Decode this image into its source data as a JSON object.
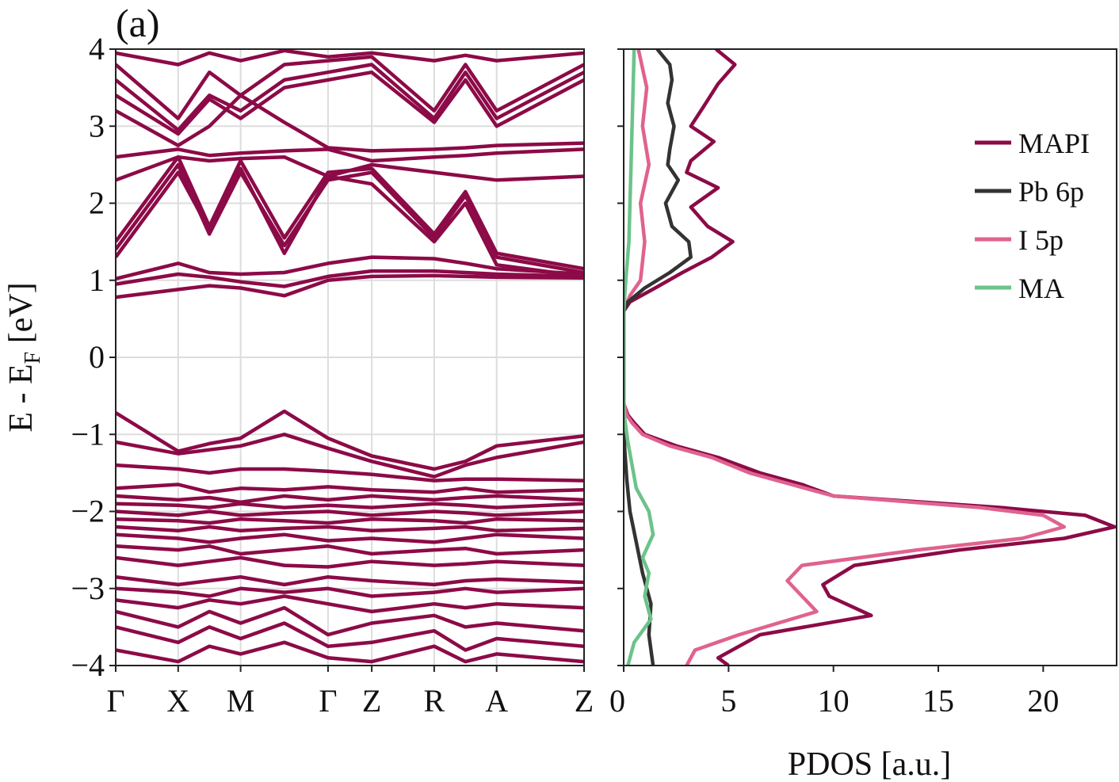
{
  "panel_label": "(a)",
  "chart_data": [
    {
      "type": "line",
      "subtype": "band-structure",
      "ylabel_main": "E - E",
      "ylabel_sub": "F",
      "ylabel_suffix": " [eV]",
      "ylim": [
        -4,
        4
      ],
      "yticks": [
        4,
        3,
        2,
        1,
        0,
        -1,
        -2,
        -3,
        -4
      ],
      "ytick_labels": [
        "4",
        "3",
        "2",
        "1",
        "0",
        "−1",
        "−2",
        "−3",
        "−4"
      ],
      "kpoints": [
        {
          "label": "Γ",
          "x": 0
        },
        {
          "label": "X",
          "x": 0.5
        },
        {
          "label": "M",
          "x": 1.0
        },
        {
          "label": "Γ",
          "x": 1.7
        },
        {
          "label": "Z",
          "x": 2.05
        },
        {
          "label": "R",
          "x": 2.55
        },
        {
          "label": "A",
          "x": 3.05
        },
        {
          "label": "Z",
          "x": 3.75
        }
      ],
      "band_color": "#8c0a47",
      "grid": true,
      "bands": [
        [
          0.78,
          0.88,
          0.93,
          0.9,
          0.8,
          1.0,
          1.05,
          1.06,
          1.05,
          1.04,
          1.03
        ],
        [
          0.95,
          1.08,
          1.04,
          0.98,
          0.92,
          1.05,
          1.12,
          1.12,
          1.1,
          1.08,
          1.05
        ],
        [
          1.02,
          1.22,
          1.1,
          1.08,
          1.1,
          1.22,
          1.3,
          1.28,
          1.22,
          1.15,
          1.08
        ],
        [
          1.3,
          2.4,
          1.65,
          2.45,
          1.35,
          2.35,
          2.25,
          1.5,
          2.0,
          1.2,
          1.05
        ],
        [
          1.4,
          2.5,
          1.6,
          2.4,
          1.45,
          2.3,
          2.4,
          1.55,
          2.1,
          1.3,
          1.1
        ],
        [
          1.5,
          2.6,
          1.7,
          2.55,
          1.55,
          2.4,
          2.45,
          1.6,
          2.15,
          1.35,
          1.15
        ],
        [
          2.3,
          2.6,
          2.55,
          2.58,
          2.6,
          2.35,
          2.5,
          2.4,
          2.35,
          2.3,
          2.35
        ],
        [
          2.6,
          2.7,
          2.62,
          2.65,
          2.68,
          2.7,
          2.55,
          2.6,
          2.62,
          2.65,
          2.7
        ],
        [
          3.2,
          2.75,
          3.0,
          3.4,
          3.05,
          2.72,
          2.68,
          2.7,
          2.72,
          2.75,
          2.78
        ],
        [
          3.4,
          2.9,
          3.35,
          3.1,
          3.5,
          3.6,
          3.7,
          3.05,
          3.6,
          3.0,
          3.6
        ],
        [
          3.6,
          2.95,
          3.4,
          3.2,
          3.6,
          3.7,
          3.8,
          3.1,
          3.7,
          3.1,
          3.7
        ],
        [
          3.8,
          3.1,
          3.7,
          3.4,
          3.8,
          3.85,
          3.9,
          3.2,
          3.8,
          3.2,
          3.8
        ],
        [
          3.95,
          3.8,
          3.95,
          3.85,
          3.98,
          3.9,
          3.95,
          3.85,
          3.92,
          3.85,
          3.95
        ],
        [
          -0.72,
          -1.22,
          -1.12,
          -1.05,
          -0.7,
          -1.05,
          -1.28,
          -1.45,
          -1.35,
          -1.15,
          -1.02
        ],
        [
          -1.1,
          -1.25,
          -1.2,
          -1.15,
          -1.0,
          -1.18,
          -1.35,
          -1.55,
          -1.4,
          -1.3,
          -1.1
        ],
        [
          -1.4,
          -1.45,
          -1.5,
          -1.45,
          -1.45,
          -1.48,
          -1.52,
          -1.6,
          -1.58,
          -1.58,
          -1.6
        ],
        [
          -1.7,
          -1.65,
          -1.75,
          -1.7,
          -1.72,
          -1.68,
          -1.72,
          -1.75,
          -1.7,
          -1.75,
          -1.72
        ],
        [
          -1.8,
          -1.85,
          -1.82,
          -1.88,
          -1.8,
          -1.85,
          -1.8,
          -1.85,
          -1.82,
          -1.8,
          -1.85
        ],
        [
          -1.9,
          -1.92,
          -1.95,
          -1.9,
          -1.95,
          -1.92,
          -1.95,
          -1.9,
          -1.92,
          -1.95,
          -1.9
        ],
        [
          -2.0,
          -2.05,
          -2.0,
          -2.05,
          -2.02,
          -2.0,
          -2.05,
          -2.0,
          -2.02,
          -2.05,
          -2.0
        ],
        [
          -2.1,
          -2.12,
          -2.15,
          -2.1,
          -2.12,
          -2.15,
          -2.1,
          -2.12,
          -2.15,
          -2.1,
          -2.12
        ],
        [
          -2.2,
          -2.25,
          -2.2,
          -2.25,
          -2.22,
          -2.2,
          -2.25,
          -2.22,
          -2.2,
          -2.25,
          -2.22
        ],
        [
          -2.3,
          -2.35,
          -2.4,
          -2.35,
          -2.3,
          -2.38,
          -2.35,
          -2.4,
          -2.35,
          -2.3,
          -2.35
        ],
        [
          -2.45,
          -2.5,
          -2.45,
          -2.55,
          -2.5,
          -2.45,
          -2.55,
          -2.5,
          -2.48,
          -2.55,
          -2.5
        ],
        [
          -2.6,
          -2.7,
          -2.65,
          -2.6,
          -2.7,
          -2.72,
          -2.65,
          -2.7,
          -2.68,
          -2.65,
          -2.7
        ],
        [
          -2.85,
          -2.95,
          -2.9,
          -2.85,
          -2.95,
          -2.85,
          -2.9,
          -2.95,
          -2.9,
          -2.88,
          -2.92
        ],
        [
          -3.0,
          -3.05,
          -3.1,
          -3.0,
          -3.05,
          -3.0,
          -3.1,
          -3.05,
          -3.0,
          -3.05,
          -3.0
        ],
        [
          -3.15,
          -3.25,
          -3.15,
          -3.2,
          -3.1,
          -3.2,
          -3.3,
          -3.2,
          -3.25,
          -3.2,
          -3.25
        ],
        [
          -3.3,
          -3.5,
          -3.3,
          -3.45,
          -3.25,
          -3.6,
          -3.45,
          -3.35,
          -3.5,
          -3.45,
          -3.55
        ],
        [
          -3.5,
          -3.7,
          -3.5,
          -3.65,
          -3.45,
          -3.75,
          -3.7,
          -3.55,
          -3.8,
          -3.65,
          -3.75
        ],
        [
          -3.8,
          -3.95,
          -3.75,
          -3.85,
          -3.7,
          -3.9,
          -3.95,
          -3.75,
          -3.95,
          -3.85,
          -3.95
        ]
      ]
    },
    {
      "type": "line",
      "subtype": "density-of-states",
      "xlabel": "PDOS [a.u.]",
      "xlim": [
        0,
        23.5
      ],
      "xticks": [
        0,
        5,
        10,
        15,
        20
      ],
      "xtick_labels": [
        "0",
        "5",
        "10",
        "15",
        "20"
      ],
      "ylim": [
        -4,
        4
      ],
      "yticks": [
        4,
        3,
        2,
        1,
        0,
        -1,
        -2,
        -3,
        -4
      ],
      "legend_position": "upper-right",
      "series": [
        {
          "name": "MAPI",
          "color": "#8c0a47",
          "e": [
            -4.0,
            -3.9,
            -3.6,
            -3.35,
            -3.1,
            -2.95,
            -2.7,
            -2.5,
            -2.35,
            -2.2,
            -2.05,
            -1.95,
            -1.8,
            -1.65,
            -1.5,
            -1.3,
            -1.15,
            -1.0,
            -0.85,
            -0.75,
            -0.6,
            0.6,
            0.72,
            0.9,
            1.1,
            1.3,
            1.5,
            1.7,
            1.95,
            2.2,
            2.4,
            2.55,
            2.8,
            3.0,
            3.25,
            3.55,
            3.8,
            4.0
          ],
          "pdos": [
            5.0,
            4.5,
            6.5,
            11.8,
            9.8,
            9.5,
            11.0,
            16.0,
            21.0,
            23.4,
            22.0,
            18.0,
            10.0,
            8.5,
            6.5,
            4.5,
            2.5,
            1.0,
            0.5,
            0.2,
            0.0,
            0.0,
            0.3,
            1.5,
            2.8,
            4.2,
            5.2,
            4.0,
            3.2,
            4.5,
            3.0,
            3.2,
            4.3,
            3.2,
            3.8,
            4.5,
            5.3,
            4.4
          ]
        },
        {
          "name": "Pb 6p",
          "color": "#333333",
          "e": [
            -4.0,
            -3.6,
            -3.2,
            -2.8,
            -2.4,
            -2.0,
            -1.6,
            -1.2,
            -0.9,
            -0.6,
            0.6,
            0.72,
            0.9,
            1.1,
            1.3,
            1.5,
            1.7,
            2.0,
            2.3,
            2.5,
            2.7,
            3.0,
            3.3,
            3.6,
            3.8,
            4.0
          ],
          "pdos": [
            1.4,
            1.2,
            1.3,
            0.9,
            0.6,
            0.3,
            0.15,
            0.05,
            0.02,
            0.0,
            0.0,
            0.2,
            1.0,
            2.2,
            3.2,
            3.1,
            2.3,
            2.0,
            2.6,
            2.1,
            2.2,
            2.4,
            2.1,
            2.3,
            2.2,
            1.6
          ]
        },
        {
          "name": "I 5p",
          "color": "#e0628f",
          "e": [
            -4.0,
            -3.8,
            -3.6,
            -3.3,
            -3.1,
            -2.9,
            -2.7,
            -2.5,
            -2.35,
            -2.2,
            -2.05,
            -1.95,
            -1.8,
            -1.65,
            -1.5,
            -1.3,
            -1.15,
            -1.0,
            -0.85,
            -0.75,
            -0.6,
            0.6,
            0.8,
            1.0,
            1.5,
            2.0,
            2.5,
            3.0,
            3.5,
            4.0
          ],
          "pdos": [
            3.0,
            3.4,
            5.5,
            9.2,
            8.5,
            7.8,
            8.5,
            14.0,
            19.0,
            21.0,
            20.0,
            17.0,
            10.0,
            8.0,
            6.0,
            4.2,
            2.2,
            0.9,
            0.4,
            0.15,
            0.0,
            0.0,
            0.3,
            0.8,
            1.0,
            0.8,
            1.2,
            0.9,
            1.1,
            0.7
          ]
        },
        {
          "name": "MA",
          "color": "#6cc38a",
          "e": [
            -4.0,
            -3.7,
            -3.4,
            -3.1,
            -2.8,
            -2.6,
            -2.3,
            -2.0,
            -1.7,
            -1.4,
            -1.1,
            -0.8,
            -0.6,
            0.6,
            1.0,
            1.5,
            2.0,
            2.5,
            3.0,
            3.5,
            4.0
          ],
          "pdos": [
            0.2,
            0.5,
            1.3,
            1.0,
            1.2,
            0.9,
            1.4,
            1.2,
            0.6,
            0.4,
            0.2,
            0.05,
            0.0,
            0.0,
            0.1,
            0.25,
            0.3,
            0.35,
            0.4,
            0.45,
            0.5
          ]
        }
      ]
    }
  ]
}
